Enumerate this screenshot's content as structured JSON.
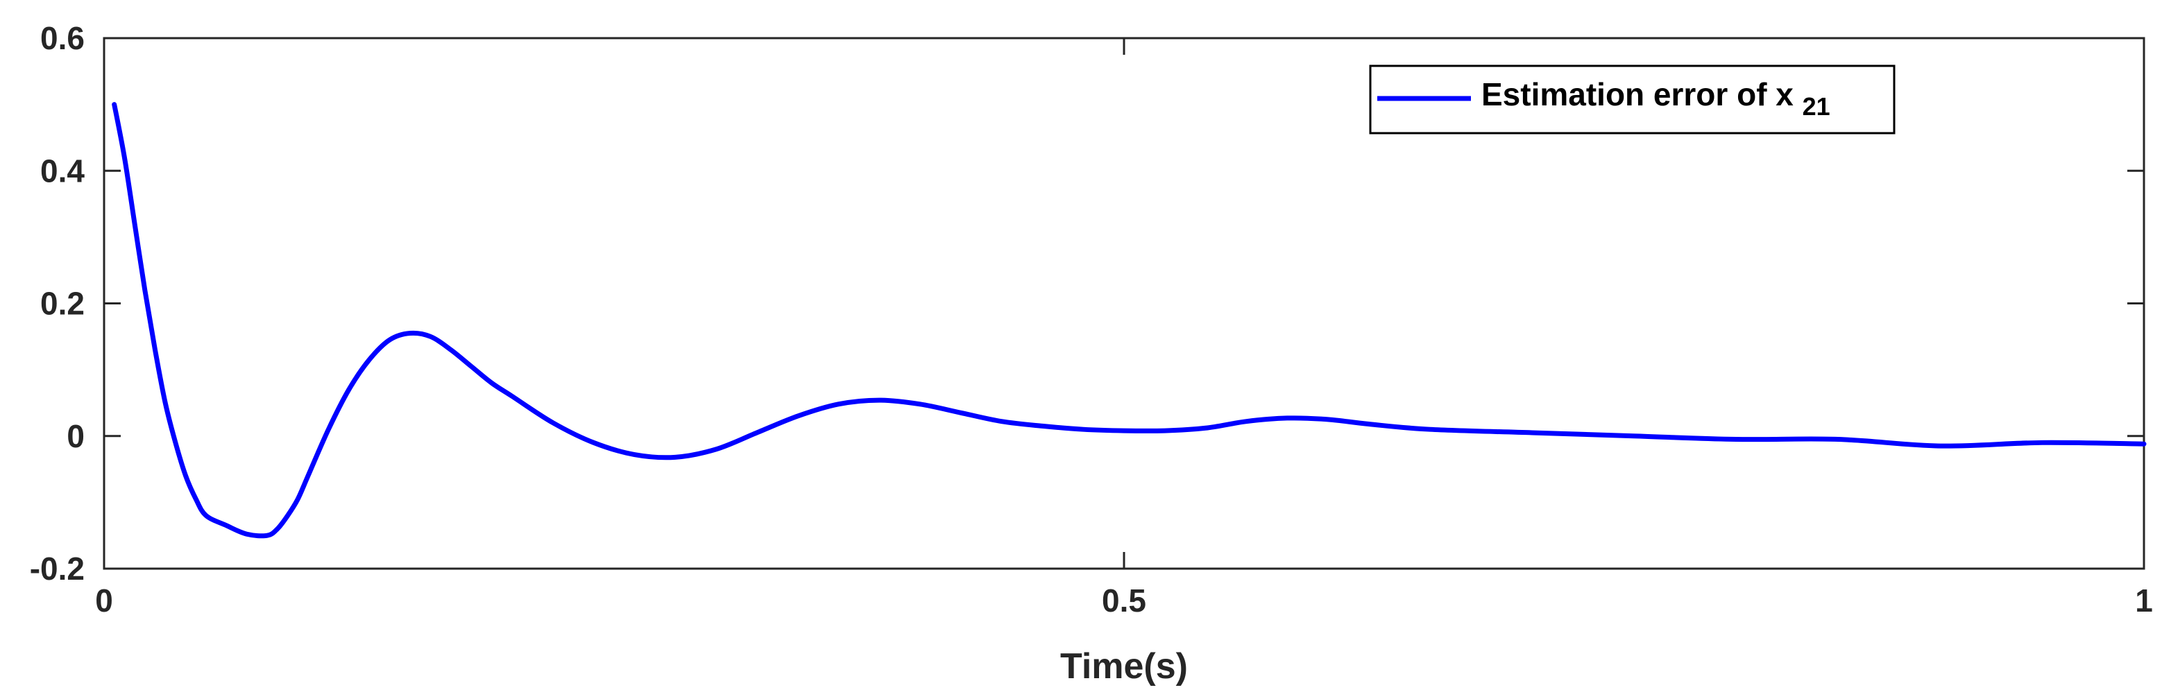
{
  "colors": {
    "series": "#0000ff",
    "axes": "#262626",
    "background": "#ffffff"
  },
  "chart_data": {
    "type": "line",
    "title": "",
    "xlabel": "Time(s)",
    "ylabel": "",
    "xlim": [
      0,
      1
    ],
    "ylim": [
      -0.2,
      0.6
    ],
    "xticks": [
      0,
      0.5,
      1
    ],
    "xtick_labels": [
      "0",
      "0.5",
      "1"
    ],
    "yticks": [
      -0.2,
      0,
      0.2,
      0.4,
      0.6
    ],
    "ytick_labels": [
      "-0.2",
      "0",
      "0.2",
      "0.4",
      "0.6"
    ],
    "grid": false,
    "legend": {
      "position": "top-right",
      "entries": [
        {
          "text": "Estimation error of x",
          "subscript": "21"
        }
      ]
    },
    "series": [
      {
        "color": "#0000ff",
        "x": [
          0.005,
          0.01,
          0.015,
          0.02,
          0.025,
          0.03,
          0.035,
          0.04,
          0.045,
          0.05,
          0.06,
          0.07,
          0.08,
          0.085,
          0.09,
          0.095,
          0.1,
          0.11,
          0.12,
          0.13,
          0.14,
          0.15,
          0.16,
          0.17,
          0.18,
          0.19,
          0.2,
          0.22,
          0.24,
          0.26,
          0.28,
          0.3,
          0.32,
          0.34,
          0.36,
          0.38,
          0.4,
          0.42,
          0.44,
          0.46,
          0.48,
          0.5,
          0.52,
          0.54,
          0.56,
          0.58,
          0.6,
          0.62,
          0.65,
          0.7,
          0.75,
          0.8,
          0.85,
          0.9,
          0.95,
          1.0
        ],
        "y": [
          0.5,
          0.42,
          0.32,
          0.22,
          0.13,
          0.05,
          -0.01,
          -0.06,
          -0.095,
          -0.12,
          -0.135,
          -0.148,
          -0.15,
          -0.14,
          -0.12,
          -0.095,
          -0.06,
          0.01,
          0.07,
          0.115,
          0.145,
          0.155,
          0.15,
          0.13,
          0.105,
          0.08,
          0.06,
          0.02,
          -0.01,
          -0.028,
          -0.032,
          -0.02,
          0.005,
          0.03,
          0.048,
          0.054,
          0.048,
          0.035,
          0.022,
          0.015,
          0.01,
          0.008,
          0.008,
          0.012,
          0.022,
          0.027,
          0.025,
          0.018,
          0.01,
          0.005,
          0.0,
          -0.005,
          -0.005,
          -0.015,
          -0.01,
          -0.012
        ]
      }
    ]
  }
}
